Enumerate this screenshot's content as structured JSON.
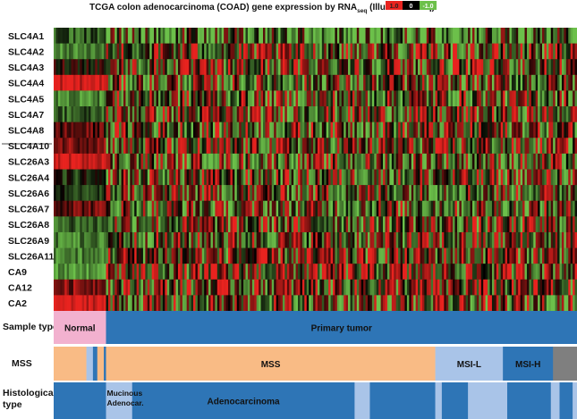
{
  "chart_data": {
    "type": "heatmap",
    "title_main": "TCGA colon adenocarcinoma (COAD) gene expression by RNA",
    "title_sub": "seq",
    "title_tail": " (IlluminaHiSeq)",
    "legend": {
      "values": [
        "1.0",
        "0",
        "-1.0"
      ],
      "colors": [
        "#e8231f",
        "#000000",
        "#6cc04a"
      ]
    },
    "genes": [
      "SLC4A1",
      "SLC4A2",
      "SLC4A3",
      "SLC4A4",
      "SLC4A5",
      "SLC4A7",
      "SLC4A8",
      "SLC4A10",
      "SLC26A3",
      "SLC26A4",
      "SLC26A6",
      "SLC26A7",
      "SLC26A8",
      "SLC26A9",
      "SLC26A11",
      "CA9",
      "CA12",
      "CA2"
    ],
    "gene_bias_normal": [
      -0.4,
      -0.6,
      0.1,
      0.9,
      -0.6,
      -0.4,
      0.3,
      0.5,
      0.95,
      -0.2,
      -0.3,
      0.4,
      -0.4,
      -0.6,
      -0.6,
      -0.8,
      0.5,
      0.95
    ],
    "gene_bias_tumor": [
      -0.5,
      0.05,
      0.05,
      -0.15,
      -0.05,
      0.05,
      0.0,
      0.0,
      -0.1,
      0.0,
      0.0,
      -0.1,
      0.0,
      0.0,
      0.1,
      0.15,
      0.1,
      -0.05
    ],
    "samples": 240,
    "normal_samples": 24,
    "value_range": [
      -1.0,
      1.0
    ],
    "annotations": [
      {
        "label": "Sample type",
        "segments": [
          {
            "label": "Normal",
            "start": 0,
            "end": 24,
            "color": "#f2b1cf"
          },
          {
            "label": "Primary tumor",
            "start": 24,
            "end": 240,
            "color": "#2e75b6"
          }
        ]
      },
      {
        "label": "MSS",
        "segments": [
          {
            "label": "",
            "start": 0,
            "end": 15,
            "color": "#f9bb85"
          },
          {
            "label": "",
            "start": 15,
            "end": 18,
            "color": "#a9c4e8"
          },
          {
            "label": "",
            "start": 18,
            "end": 20,
            "color": "#2e75b6"
          },
          {
            "label": "",
            "start": 20,
            "end": 23,
            "color": "#f9bb85"
          },
          {
            "label": "",
            "start": 23,
            "end": 24,
            "color": "#2e75b6"
          },
          {
            "label": "MSS",
            "start": 24,
            "end": 175,
            "color": "#f9bb85"
          },
          {
            "label": "MSI-L",
            "start": 175,
            "end": 206,
            "color": "#a9c4e8"
          },
          {
            "label": "MSI-H",
            "start": 206,
            "end": 229,
            "color": "#2e75b6"
          },
          {
            "label": "",
            "start": 229,
            "end": 240,
            "color": "#7f7f7f"
          }
        ]
      },
      {
        "label": "Histological type",
        "label_lines": [
          "Histological",
          "type"
        ],
        "segments": [
          {
            "label": "",
            "start": 0,
            "end": 24,
            "color": "#2e75b6"
          },
          {
            "label": "Mucinous Adenocar.",
            "label_lines": [
              "Mucinous",
              "Adenocar."
            ],
            "start": 24,
            "end": 36,
            "color": "#a9c4e8"
          },
          {
            "label": "Adenocarcinoma",
            "start": 36,
            "end": 138,
            "color": "#2e75b6"
          },
          {
            "label": "",
            "start": 138,
            "end": 145,
            "color": "#a9c4e8"
          },
          {
            "label": "",
            "start": 145,
            "end": 175,
            "color": "#2e75b6"
          },
          {
            "label": "",
            "start": 175,
            "end": 178,
            "color": "#a9c4e8"
          },
          {
            "label": "",
            "start": 178,
            "end": 190,
            "color": "#2e75b6"
          },
          {
            "label": "",
            "start": 190,
            "end": 208,
            "color": "#a9c4e8"
          },
          {
            "label": "",
            "start": 208,
            "end": 228,
            "color": "#2e75b6"
          },
          {
            "label": "",
            "start": 228,
            "end": 232,
            "color": "#a9c4e8"
          },
          {
            "label": "",
            "start": 232,
            "end": 238,
            "color": "#2e75b6"
          },
          {
            "label": "",
            "start": 238,
            "end": 240,
            "color": "#a9c4e8"
          }
        ]
      }
    ]
  }
}
